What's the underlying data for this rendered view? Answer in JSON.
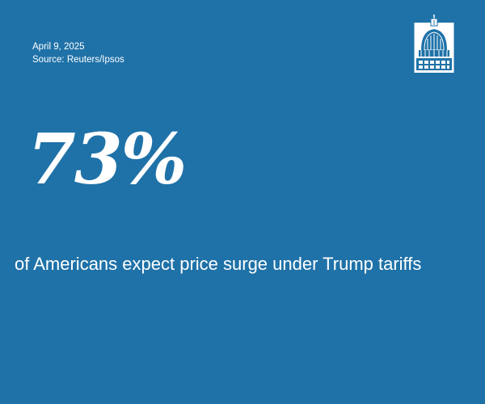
{
  "meta": {
    "date": "April 9, 2025",
    "source": "Source: Reuters/Ipsos"
  },
  "stat": {
    "value": "73%"
  },
  "headline": "of Americans expect price surge under Trump tariffs",
  "colors": {
    "background": "#1f72a8",
    "text": "#ffffff"
  },
  "logo": {
    "icon": "capitol-dome-icon"
  }
}
